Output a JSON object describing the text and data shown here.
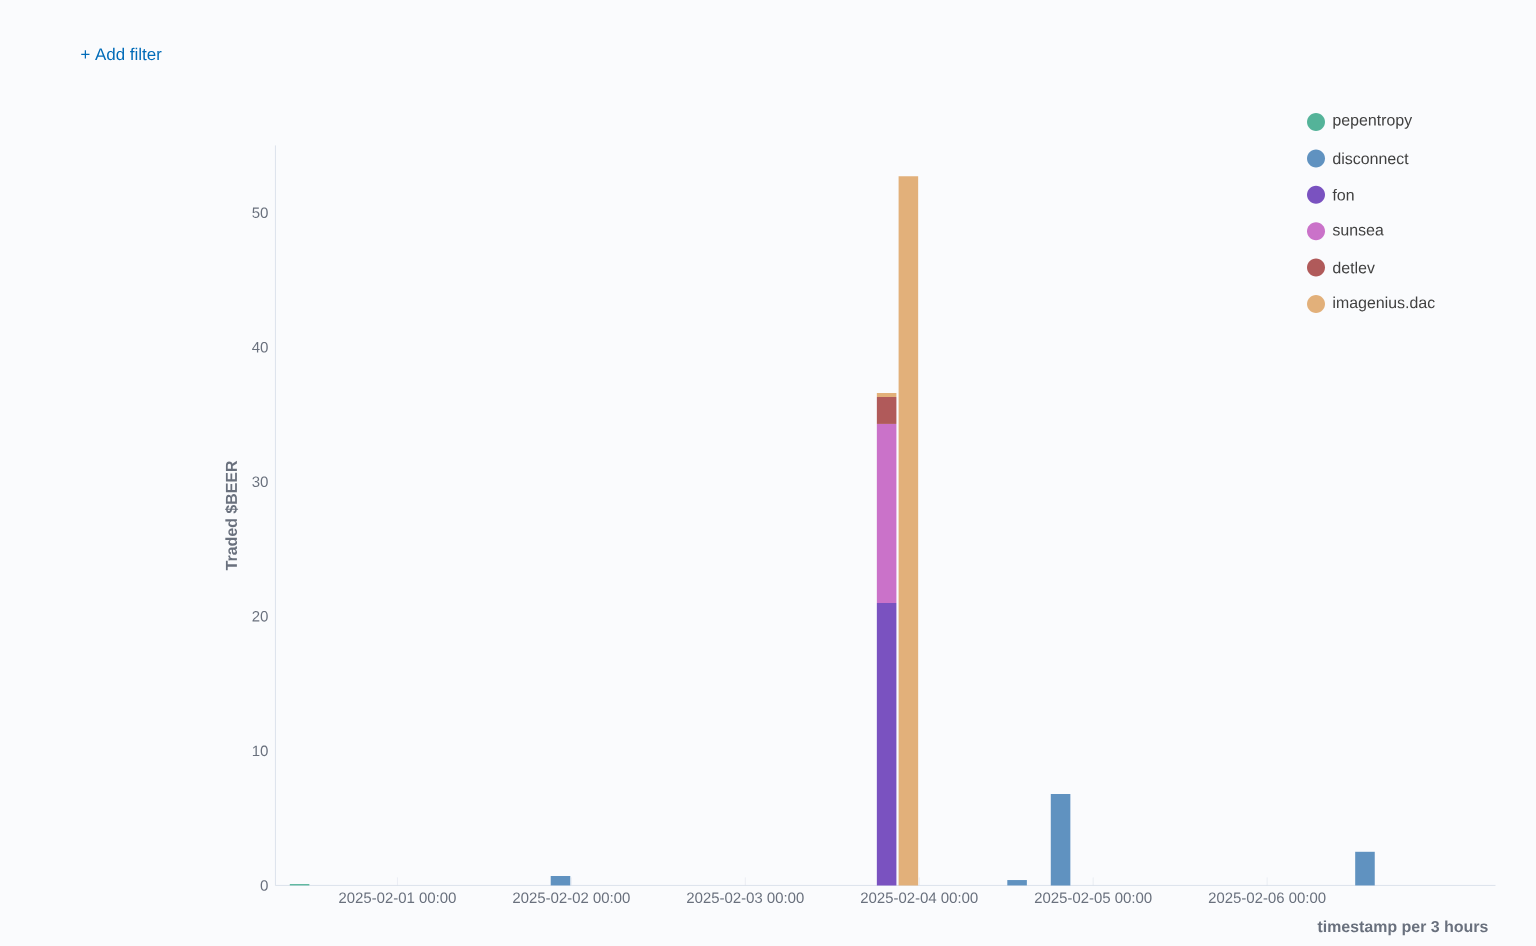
{
  "chart_data": {
    "type": "bar",
    "stacked": true,
    "xlabel": "timestamp per 3 hours",
    "ylabel": "Traded $BEER",
    "annotations": [
      "+ Add filter"
    ],
    "xlim": [
      "2025-01-31T07:10",
      "2025-02-07T07:30"
    ],
    "xticks": [
      {
        "value": "2025-02-01T00:00",
        "label": "2025-02-01 00:00"
      },
      {
        "value": "2025-02-02T00:00",
        "label": "2025-02-02 00:00"
      },
      {
        "value": "2025-02-03T00:00",
        "label": "2025-02-03 00:00"
      },
      {
        "value": "2025-02-04T00:00",
        "label": "2025-02-04 00:00"
      },
      {
        "value": "2025-02-05T00:00",
        "label": "2025-02-05 00:00"
      },
      {
        "value": "2025-02-06T00:00",
        "label": "2025-02-06 00:00"
      }
    ],
    "ylim": [
      0,
      55
    ],
    "yticks": [
      0,
      10,
      20,
      30,
      40,
      50
    ],
    "grid": false,
    "legend": "top right",
    "x": [
      "2025-01-31T10:30",
      "2025-02-01T22:30",
      "2025-02-03T19:30",
      "2025-02-03T22:30",
      "2025-02-04T13:30",
      "2025-02-04T19:30",
      "2025-02-06T13:30"
    ],
    "series": [
      {
        "name": "pepentropy",
        "color": "#54b399",
        "values": [
          0.1,
          null,
          null,
          null,
          null,
          null,
          null
        ]
      },
      {
        "name": "disconnect",
        "color": "#6092c0",
        "values": [
          null,
          0.7,
          null,
          null,
          0.4,
          6.8,
          2.5
        ]
      },
      {
        "name": "fon",
        "color": "#7a52c0",
        "values": [
          null,
          null,
          21.0,
          null,
          null,
          null,
          null
        ]
      },
      {
        "name": "sunsea",
        "color": "#ca72c9",
        "values": [
          null,
          null,
          13.3,
          null,
          null,
          null,
          null
        ]
      },
      {
        "name": "detlev",
        "color": "#b05a5a",
        "values": [
          null,
          null,
          2.0,
          null,
          null,
          null,
          null
        ]
      },
      {
        "name": "imagenius.dac",
        "color": "#e2b07a",
        "values": [
          null,
          null,
          0.3,
          52.7,
          null,
          null,
          null
        ]
      }
    ]
  }
}
